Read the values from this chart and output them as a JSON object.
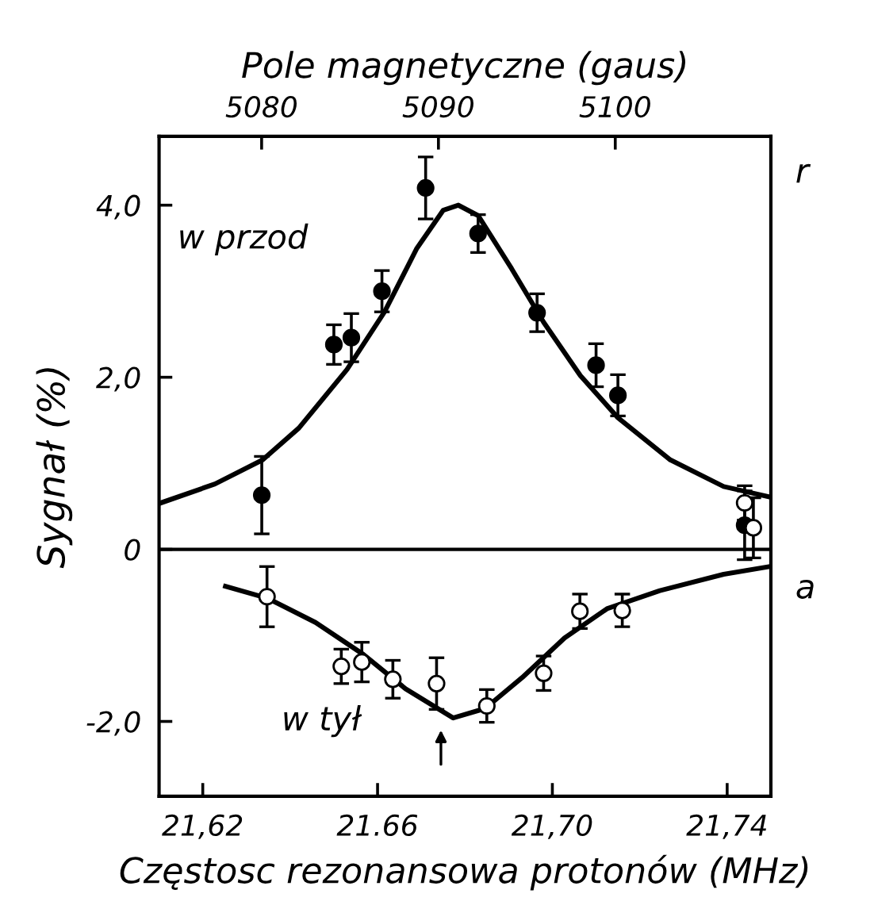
{
  "chart_data": {
    "type": "scatter",
    "xlabel": "Częstosc rezonansowa protonów (MHz)",
    "x2label": "Pole magnetyczne (gaus)",
    "ylabel": "Sygnał (%)",
    "xlim": [
      21.61,
      21.75
    ],
    "xticks": [
      {
        "value": 21.62,
        "label": "21,62"
      },
      {
        "value": 21.66,
        "label": "21.66"
      },
      {
        "value": 21.7,
        "label": "21,70"
      },
      {
        "value": 21.74,
        "label": "21,74"
      }
    ],
    "x2lim": [
      5074.2,
      5108.8
    ],
    "x2ticks": [
      5080,
      5090,
      5100
    ],
    "ylim": [
      -2.87,
      4.8
    ],
    "yticks": [
      {
        "value": -2.0,
        "label": "-2,0"
      },
      0,
      {
        "value": 2.0,
        "label": "2,0"
      },
      {
        "value": 4.0,
        "label": "4,0"
      }
    ],
    "grid": false,
    "ref_lines": [
      {
        "axis": "y",
        "value": 0,
        "color": "#000000"
      }
    ],
    "annotations": [
      "w przod",
      "w tył",
      "r",
      "a"
    ],
    "series": [
      {
        "marker": "circle",
        "color": "#000000",
        "x": [
          21.6335,
          21.65,
          21.654,
          21.661,
          21.671,
          21.683,
          21.6965,
          21.71,
          21.715,
          21.744
        ],
        "values": [
          0.63,
          2.38,
          2.46,
          3.0,
          4.2,
          3.67,
          2.75,
          2.14,
          1.79,
          0.28
        ],
        "errors": [
          0.45,
          0.23,
          0.28,
          0.24,
          0.36,
          0.22,
          0.22,
          0.25,
          0.24,
          0.4
        ]
      },
      {
        "marker": "circle",
        "color": "#000000",
        "x": [
          21.6347,
          21.6517,
          21.6564,
          21.6635,
          21.6735,
          21.685,
          21.698,
          21.7063,
          21.716,
          21.744,
          21.746
        ],
        "values": [
          -0.55,
          -1.36,
          -1.31,
          -1.51,
          -1.56,
          -1.82,
          -1.44,
          -0.72,
          -0.71,
          0.54,
          0.25
        ],
        "errors": [
          0.35,
          0.2,
          0.23,
          0.22,
          0.3,
          0.19,
          0.2,
          0.2,
          0.19,
          0.2,
          0.35
        ]
      },
      {
        "type": "line",
        "marker": "none",
        "color": "#000000",
        "x": [
          21.6104,
          21.6228,
          21.6337,
          21.642,
          21.653,
          21.6616,
          21.669,
          21.675,
          21.6785,
          21.683,
          21.6907,
          21.698,
          21.7064,
          21.715,
          21.727,
          21.7392,
          21.7497
        ],
        "values": [
          0.54,
          0.76,
          1.04,
          1.41,
          2.09,
          2.76,
          3.5,
          3.94,
          4.0,
          3.88,
          3.26,
          2.64,
          2.02,
          1.53,
          1.04,
          0.73,
          0.61
        ]
      },
      {
        "type": "line",
        "marker": "none",
        "color": "#000000",
        "x": [
          21.6252,
          21.6349,
          21.6458,
          21.6567,
          21.6664,
          21.6773,
          21.6846,
          21.6931,
          21.7028,
          21.7125,
          21.7246,
          21.7392,
          21.7497
        ],
        "values": [
          -0.43,
          -0.57,
          -0.85,
          -1.22,
          -1.62,
          -1.96,
          -1.85,
          -1.49,
          -1.03,
          -0.69,
          -0.48,
          -0.29,
          -0.2
        ]
      }
    ]
  }
}
